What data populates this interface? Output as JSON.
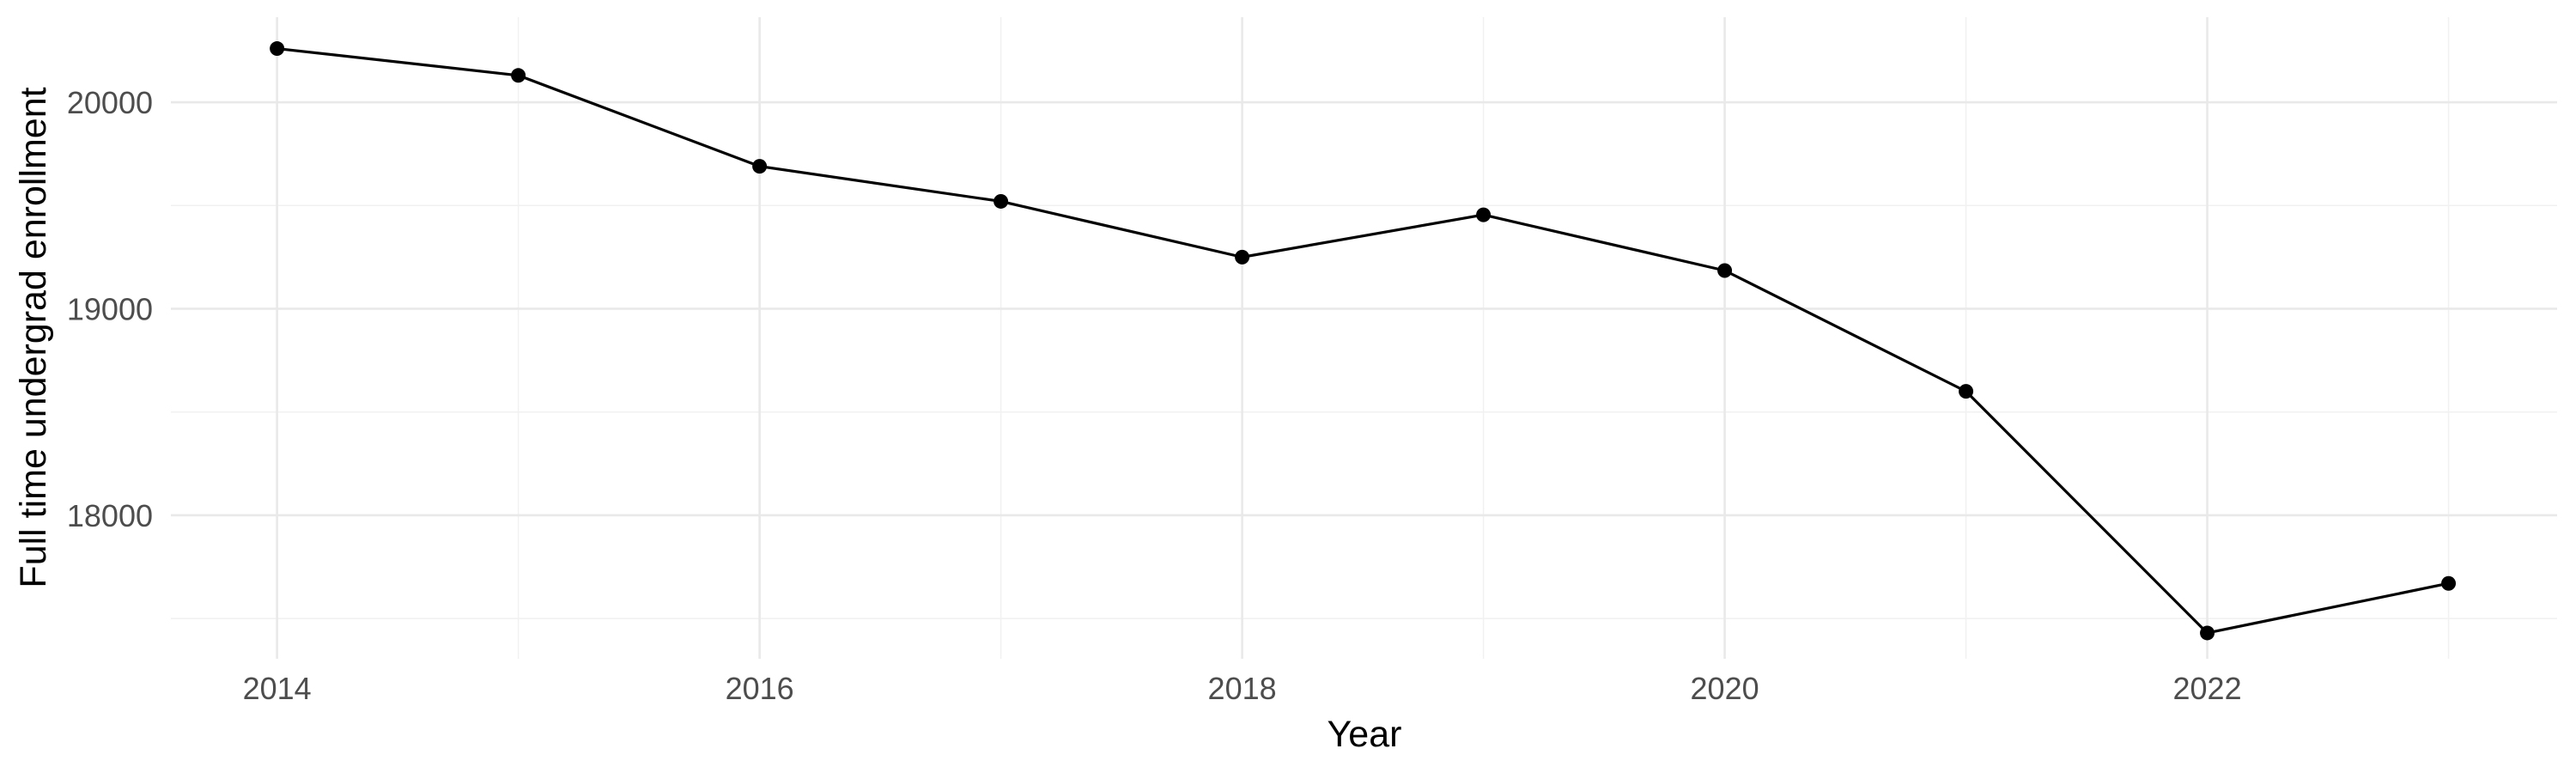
{
  "chart_data": {
    "type": "line",
    "title": "",
    "xlabel": "Year",
    "ylabel": "Full time undergrad enrollment",
    "x": [
      2014,
      2015,
      2016,
      2017,
      2018,
      2019,
      2020,
      2021,
      2022,
      2023
    ],
    "series": [
      {
        "name": "Full time undergrad enrollment",
        "values": [
          20260,
          20130,
          19690,
          19520,
          19250,
          19455,
          19185,
          18600,
          17430,
          17670
        ]
      }
    ],
    "xlim": [
      2013.56,
      2023.45
    ],
    "ylim": [
      17305,
      20412
    ],
    "x_major_ticks": [
      2014,
      2016,
      2018,
      2020,
      2022
    ],
    "x_major_tick_labels": [
      "2014",
      "2016",
      "2018",
      "2020",
      "2022"
    ],
    "x_minor_ticks": [
      2015,
      2017,
      2019,
      2021,
      2023
    ],
    "y_major_ticks": [
      18000,
      19000,
      20000
    ],
    "y_major_tick_labels": [
      "18000",
      "19000",
      "20000"
    ],
    "y_minor_ticks": [
      17500,
      18500,
      19500
    ],
    "grid": "major and minor, no axis lines, no tick marks",
    "legend": "none",
    "style": {
      "background_color": "#ffffff",
      "line_color": "#000000",
      "point_color": "#000000",
      "grid_major_color": "#e9e9e9",
      "grid_minor_color": "#f1f1f1",
      "tick_label_color": "#4d4d4d",
      "axis_title_color": "#000000",
      "line_width": 3.2,
      "point_radius": 8.5
    }
  }
}
